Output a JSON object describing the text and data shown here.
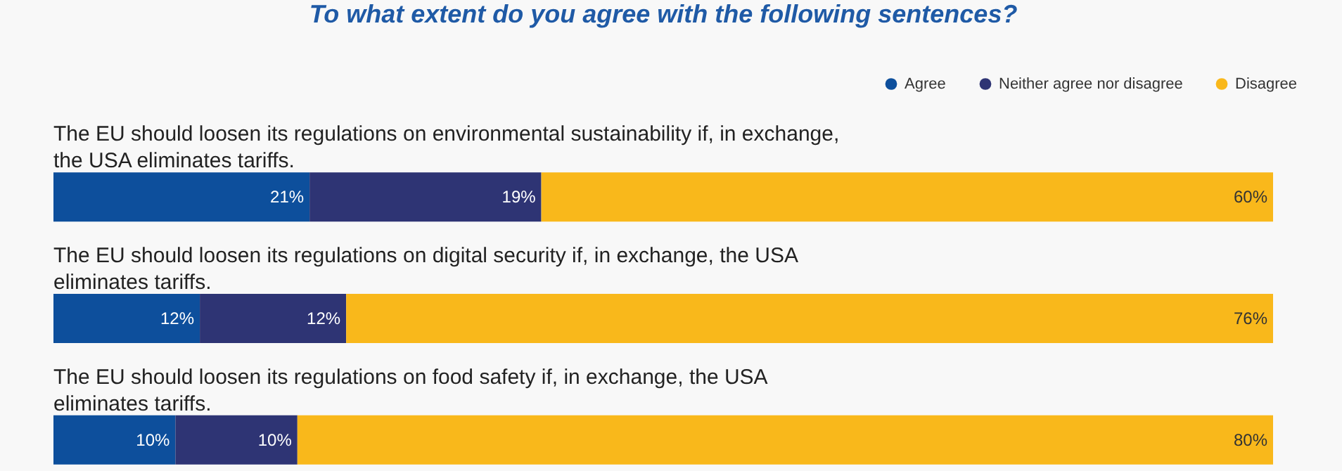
{
  "chart_data": {
    "type": "bar",
    "orientation": "horizontal",
    "stacked": true,
    "title": "To what extent do you agree with the following sentences?",
    "categories": [
      "The EU should loosen its regulations on environmental sustainability if, in exchange, the USA eliminates tariffs.",
      "The EU should loosen its regulations on digital security if, in exchange, the USA eliminates tariffs.",
      "The EU should loosen its regulations on food safety if, in exchange, the USA eliminates tariffs."
    ],
    "series": [
      {
        "name": "Agree",
        "color": "#0d4f9c",
        "values": [
          21,
          12,
          10
        ],
        "value_labels": [
          "21%",
          "12%",
          "10%"
        ]
      },
      {
        "name": "Neither agree nor disagree",
        "color": "#2e3474",
        "values": [
          19,
          12,
          10
        ],
        "value_labels": [
          "19%",
          "12%",
          "10%"
        ]
      },
      {
        "name": "Disagree",
        "color": "#f9b81b",
        "values": [
          60,
          76,
          80
        ],
        "value_labels": [
          "60%",
          "76%",
          "80%"
        ]
      }
    ],
    "xlim": [
      0,
      100
    ],
    "tick_labels": false,
    "legend": "top right"
  }
}
